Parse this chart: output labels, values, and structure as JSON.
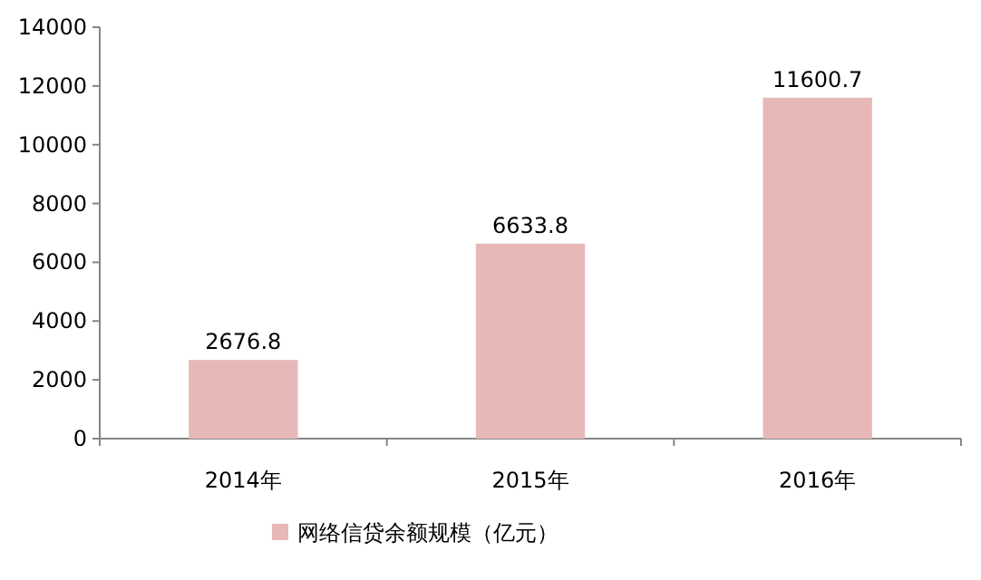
{
  "chart_data": {
    "type": "bar",
    "categories": [
      "2014年",
      "2015年",
      "2016年"
    ],
    "series": [
      {
        "name": "网络信贷余额规模（亿元）",
        "color": "#e6b9b8",
        "values": [
          2676.8,
          6633.8,
          11600.7
        ]
      }
    ],
    "ylim": [
      0,
      14000
    ],
    "yticks": [
      0,
      2000,
      4000,
      6000,
      8000,
      10000,
      12000,
      14000
    ],
    "data_labels": true,
    "legend": "bottom"
  }
}
